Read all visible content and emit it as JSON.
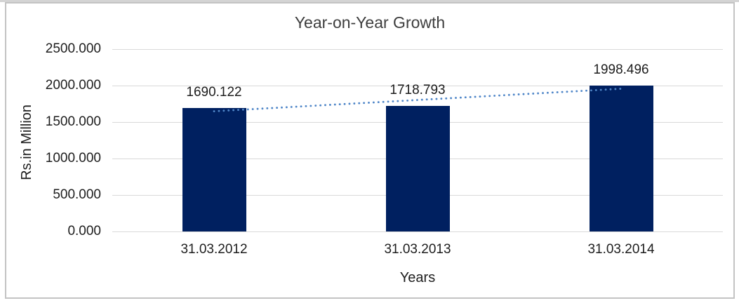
{
  "chart_data": {
    "type": "bar",
    "title": "Year-on-Year Growth",
    "xlabel": "Years",
    "ylabel": "Rs.in Million",
    "categories": [
      "31.03.2012",
      "31.03.2013",
      "31.03.2014"
    ],
    "values": [
      1690.122,
      1718.793,
      1998.496
    ],
    "data_labels": [
      "1690.122",
      "1718.793",
      "1998.496"
    ],
    "yticks": [
      0,
      500,
      1000,
      1500,
      2000,
      2500
    ],
    "ytick_labels": [
      "0.000",
      "500.000",
      "1000.000",
      "1500.000",
      "2000.000",
      "2500.000"
    ],
    "ylim": [
      0,
      2500
    ],
    "grid": true,
    "legend": false,
    "trendline": {
      "type": "linear",
      "style": "dotted"
    },
    "colors": {
      "bar": "#002060",
      "trendline": "#4f86c8",
      "gridline": "#d9d9d9",
      "text": "#1d1d1d",
      "title": "#3d3d3d",
      "frame_border": "#c3c3c3",
      "top_strip": "#d4d4d4"
    }
  }
}
